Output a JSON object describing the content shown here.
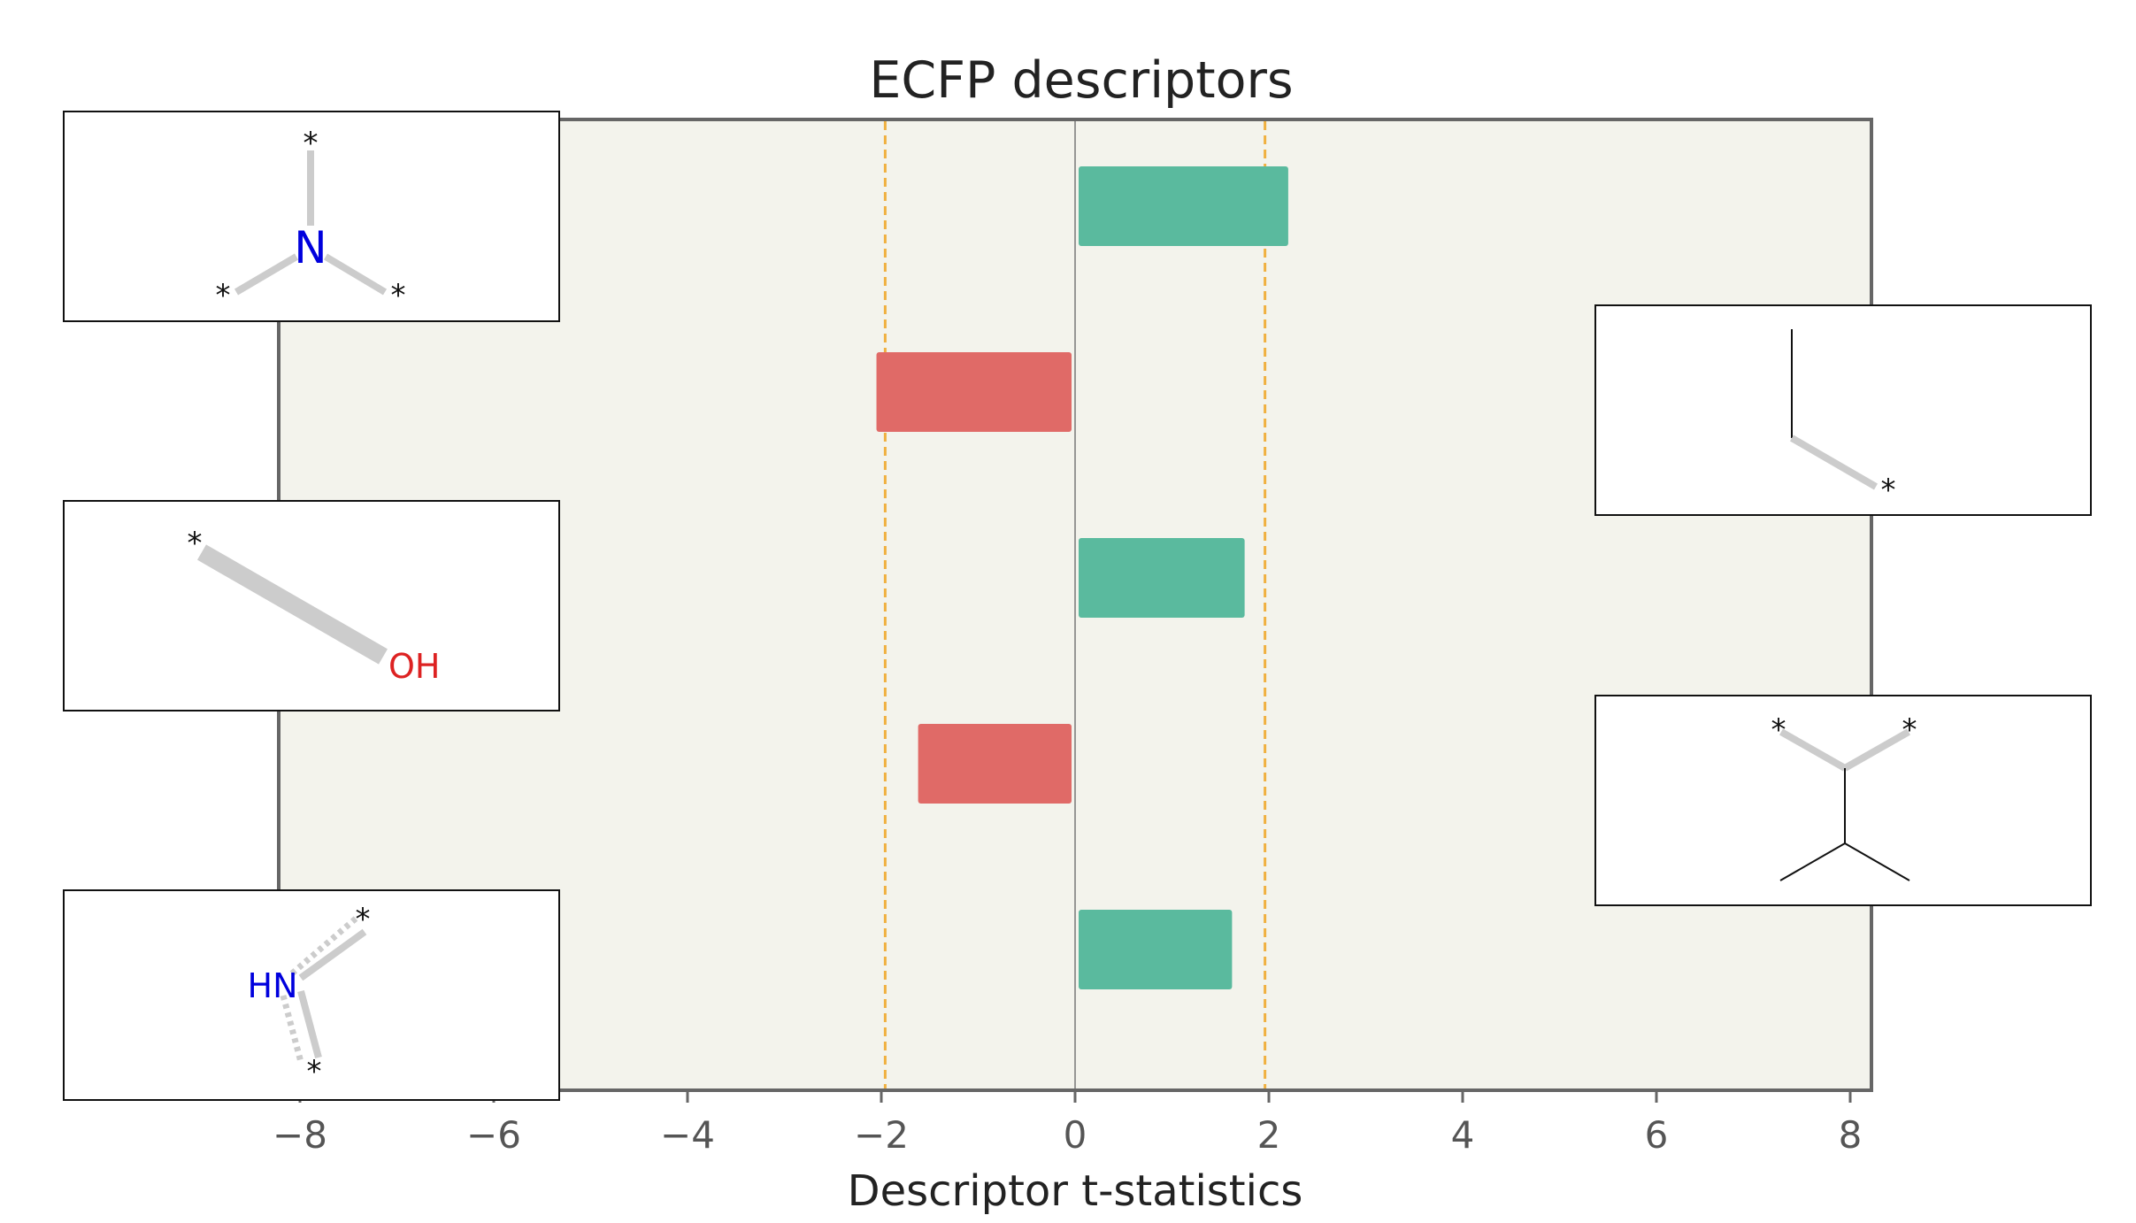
{
  "chart_data": {
    "type": "bar",
    "orientation": "horizontal",
    "title": "ECFP descriptors",
    "xlabel": "Descriptor t-statistics",
    "xlim": [
      -8.3,
      8.3
    ],
    "xticks": [
      -8,
      -6,
      -4,
      -2,
      0,
      2,
      4,
      6,
      8
    ],
    "threshold_lines": [
      -1.96,
      1.96
    ],
    "grid": false,
    "values": [
      2.2,
      -2.05,
      1.75,
      -1.62,
      1.62
    ],
    "colors": {
      "positive": "#5aba9e",
      "negative": "#e06a67",
      "threshold": "#f0b040",
      "plot_background": "#f3f3ec"
    }
  },
  "fragments": [
    {
      "id": "tertiary-amine",
      "atoms": [
        "*",
        "N",
        "*",
        "*"
      ]
    },
    {
      "id": "alkyl-chain",
      "atoms": [
        "*"
      ]
    },
    {
      "id": "hydroxyl",
      "atoms": [
        "*",
        "OH"
      ]
    },
    {
      "id": "branched-carbon",
      "atoms": [
        "*",
        "*"
      ]
    },
    {
      "id": "secondary-amine",
      "atoms": [
        "*",
        "HN",
        "*"
      ]
    }
  ]
}
